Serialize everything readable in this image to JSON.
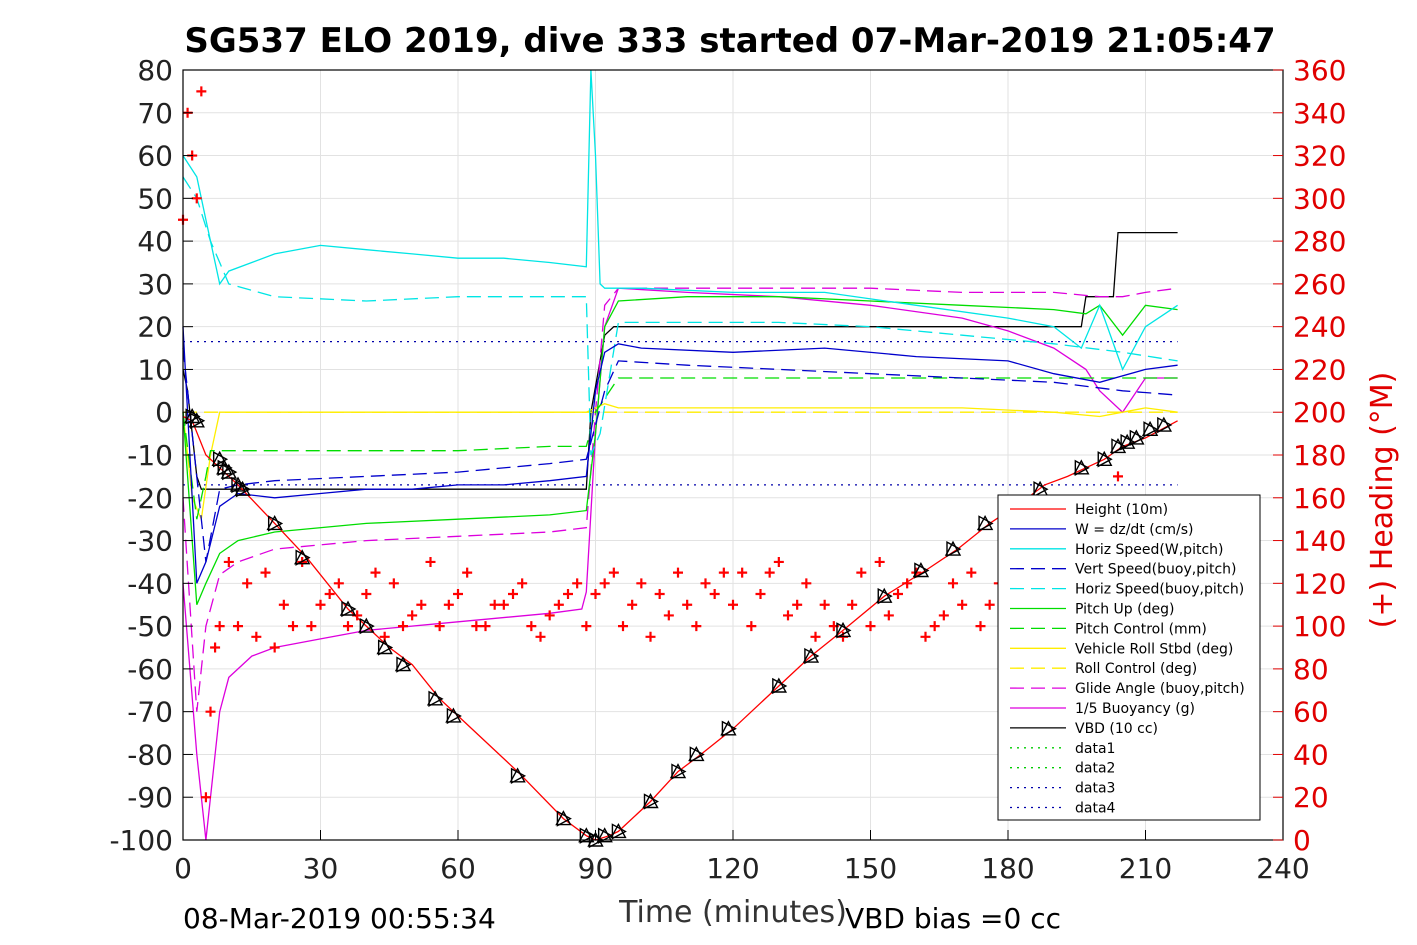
{
  "chart_data": {
    "type": "line",
    "title": "SG537 ELO 2019, dive 333 started 07-Mar-2019 21:05:47",
    "xlabel": "Time (minutes)",
    "ylabel_right": "(+) Heading (°M)",
    "xlim": [
      0,
      240
    ],
    "ylim": [
      -100,
      80
    ],
    "ylim_right": [
      0,
      360
    ],
    "x_ticks": [
      "0",
      "30",
      "60",
      "90",
      "120",
      "150",
      "180",
      "210",
      "240"
    ],
    "y_ticks": [
      "80",
      "70",
      "60",
      "50",
      "40",
      "30",
      "20",
      "10",
      "0",
      "-10",
      "-20",
      "-30",
      "-40",
      "-50",
      "-60",
      "-70",
      "-80",
      "-90",
      "-100"
    ],
    "y_right_ticks": [
      "360",
      "340",
      "320",
      "300",
      "280",
      "260",
      "240",
      "220",
      "200",
      "180",
      "160",
      "140",
      "120",
      "100",
      "80",
      "60",
      "40",
      "20",
      "0"
    ],
    "grid": true,
    "legend_position": "lower-right",
    "footer_left": "08-Mar-2019 00:55:34",
    "footer_right": "VBD bias =0 cc",
    "series": [
      {
        "name": "Height (10m)",
        "color": "#ff0000",
        "style": "solid",
        "x": [
          0,
          2,
          5,
          8,
          12,
          20,
          27,
          36,
          40,
          45,
          50,
          56,
          60,
          73,
          83,
          88,
          90,
          93,
          95,
          102,
          108,
          113,
          120,
          130,
          137,
          144,
          153,
          162,
          169,
          176,
          183,
          188,
          193,
          197,
          201,
          205,
          210,
          217
        ],
        "y": [
          -1,
          -2,
          -10,
          -13,
          -17,
          -26,
          -34,
          -46,
          -50,
          -55,
          -59,
          -67,
          -71,
          -84,
          -95,
          -99,
          -100,
          -99,
          -98,
          -91,
          -84,
          -80,
          -74,
          -64,
          -57,
          -51,
          -43,
          -37,
          -32,
          -26,
          -21,
          -17,
          -15,
          -13,
          -11,
          -8,
          -6,
          -2
        ]
      },
      {
        "name": "W = dz/dt (cm/s)",
        "color": "#0000cc",
        "style": "solid",
        "x": [
          0,
          2,
          3,
          5,
          8,
          12,
          20,
          30,
          40,
          50,
          60,
          70,
          80,
          88,
          90,
          92,
          95,
          100,
          120,
          140,
          160,
          180,
          190,
          200,
          210,
          217
        ],
        "y": [
          20,
          -20,
          -40,
          -35,
          -22,
          -19,
          -20,
          -19,
          -18,
          -18,
          -17,
          -17,
          -16,
          -15,
          5,
          14,
          16,
          15,
          14,
          15,
          13,
          12,
          9,
          7,
          10,
          11
        ]
      },
      {
        "name": "Horiz Speed(W,pitch)",
        "color": "#00e5e5",
        "style": "solid",
        "x": [
          0,
          3,
          5,
          7,
          8,
          10,
          15,
          20,
          30,
          40,
          50,
          60,
          70,
          80,
          88,
          89,
          90,
          91,
          92,
          95,
          100,
          120,
          140,
          160,
          180,
          190,
          196,
          200,
          205,
          210,
          217
        ],
        "y": [
          60,
          55,
          45,
          35,
          30,
          33,
          35,
          37,
          39,
          38,
          37,
          36,
          36,
          35,
          34,
          80,
          60,
          30,
          29,
          29,
          29,
          28,
          28,
          25,
          22,
          20,
          15,
          25,
          10,
          20,
          25
        ]
      },
      {
        "name": "Vert Speed(buoy,pitch)",
        "color": "#0000cc",
        "style": "dashed",
        "x": [
          0,
          5,
          8,
          12,
          20,
          40,
          60,
          80,
          88,
          92,
          95,
          110,
          130,
          150,
          170,
          190,
          205,
          217
        ],
        "y": [
          15,
          -35,
          -18,
          -17,
          -16,
          -15,
          -14,
          -12,
          -11,
          5,
          12,
          11,
          10,
          9,
          8,
          7,
          5,
          4
        ]
      },
      {
        "name": "Horiz Speed(buoy,pitch)",
        "color": "#00e5e5",
        "style": "dashed",
        "x": [
          0,
          3,
          6,
          8,
          10,
          20,
          40,
          60,
          80,
          88,
          89,
          91,
          95,
          110,
          130,
          150,
          170,
          190,
          205,
          217
        ],
        "y": [
          55,
          50,
          40,
          35,
          30,
          27,
          26,
          27,
          27,
          27,
          -10,
          -5,
          21,
          21,
          21,
          20,
          18,
          16,
          14,
          12
        ]
      },
      {
        "name": "Pitch Up (deg)",
        "color": "#00dd00",
        "style": "solid",
        "x": [
          0,
          3,
          5,
          8,
          12,
          20,
          40,
          60,
          80,
          88,
          90,
          92,
          95,
          110,
          130,
          150,
          170,
          190,
          197,
          200,
          205,
          210,
          217
        ],
        "y": [
          0,
          -45,
          -40,
          -33,
          -30,
          -28,
          -26,
          -25,
          -24,
          -23,
          -5,
          20,
          26,
          27,
          27,
          26,
          25,
          24,
          23,
          25,
          18,
          25,
          24
        ]
      },
      {
        "name": "Pitch Control (mm)",
        "color": "#00dd00",
        "style": "dashed",
        "x": [
          0,
          3,
          5,
          6,
          20,
          40,
          60,
          80,
          88,
          90,
          95,
          110,
          130,
          150,
          170,
          190,
          205,
          217
        ],
        "y": [
          0,
          -25,
          -15,
          -9,
          -9,
          -9,
          -9,
          -8,
          -8,
          0,
          8,
          8,
          8,
          8,
          8,
          8,
          8,
          8
        ]
      },
      {
        "name": "Vehicle Roll Stbd (deg)",
        "color": "#ffee00",
        "style": "solid",
        "x": [
          0,
          2,
          4,
          6,
          8,
          12,
          20,
          40,
          60,
          80,
          88,
          92,
          95,
          120,
          150,
          170,
          190,
          200,
          205,
          210,
          217
        ],
        "y": [
          0,
          -20,
          -25,
          -10,
          0,
          0,
          0,
          0,
          0,
          0,
          0,
          2,
          1,
          1,
          1,
          1,
          0,
          -1,
          0,
          1,
          0
        ]
      },
      {
        "name": "Roll Control (deg)",
        "color": "#ffee00",
        "style": "dashed",
        "x": [
          0,
          8,
          217
        ],
        "y": [
          0,
          0,
          0
        ]
      },
      {
        "name": "Glide Angle (buoy,pitch)",
        "color": "#dd00dd",
        "style": "dashed",
        "x": [
          0,
          3,
          5,
          8,
          12,
          20,
          40,
          60,
          80,
          88,
          90,
          92,
          95,
          110,
          130,
          150,
          170,
          190,
          200,
          205,
          210,
          217
        ],
        "y": [
          -20,
          -70,
          -50,
          -38,
          -35,
          -32,
          -30,
          -29,
          -28,
          -27,
          0,
          25,
          29,
          29,
          29,
          29,
          28,
          28,
          27,
          27,
          28,
          29
        ]
      },
      {
        "name": "1/5 Buoyancy (g)",
        "color": "#dd00dd",
        "style": "solid",
        "x": [
          0,
          3,
          5,
          8,
          10,
          15,
          20,
          30,
          40,
          60,
          80,
          87,
          88,
          90,
          92,
          95,
          110,
          130,
          150,
          170,
          180,
          190,
          197,
          200,
          205,
          210,
          217
        ],
        "y": [
          -40,
          -80,
          -100,
          -70,
          -62,
          -57,
          -55,
          -53,
          -51,
          -49,
          -47,
          -46,
          -42,
          -5,
          20,
          29,
          28,
          27,
          25,
          22,
          19,
          15,
          10,
          5,
          0,
          8,
          8
        ]
      },
      {
        "name": "VBD (10 cc)",
        "color": "#000000",
        "style": "solid",
        "x": [
          0,
          1,
          3,
          4,
          88,
          89,
          92,
          94,
          100,
          120,
          140,
          150,
          160,
          180,
          196,
          197,
          203,
          204,
          217
        ],
        "y": [
          10,
          5,
          -15,
          -18,
          -18,
          0,
          18,
          20,
          20,
          20,
          20,
          20,
          20,
          20,
          20,
          27,
          27,
          42,
          42
        ]
      },
      {
        "name": "data1",
        "color": "#00cc00",
        "style": "dotted",
        "x": [],
        "y": []
      },
      {
        "name": "data2",
        "color": "#00cc00",
        "style": "dotted",
        "x": [],
        "y": []
      },
      {
        "name": "data3",
        "color": "#0000aa",
        "style": "dotted",
        "x": [
          0,
          217
        ],
        "y": [
          16.5,
          16.5
        ]
      },
      {
        "name": "data4",
        "color": "#0000aa",
        "style": "dotted",
        "x": [
          0,
          217
        ],
        "y": [
          -17,
          -17
        ]
      }
    ],
    "heading_series": {
      "color": "#ff0000",
      "marker": "+",
      "axis": "right",
      "x": [
        0,
        1,
        2,
        3,
        4,
        5,
        6,
        7,
        8,
        10,
        12,
        14,
        16,
        18,
        20,
        22,
        24,
        26,
        28,
        30,
        32,
        34,
        36,
        38,
        40,
        42,
        44,
        46,
        48,
        50,
        52,
        54,
        56,
        58,
        60,
        62,
        64,
        66,
        68,
        70,
        72,
        74,
        76,
        78,
        80,
        82,
        84,
        86,
        88,
        90,
        92,
        94,
        96,
        98,
        100,
        102,
        104,
        106,
        108,
        110,
        112,
        114,
        116,
        118,
        120,
        122,
        124,
        126,
        128,
        130,
        132,
        134,
        136,
        138,
        140,
        142,
        144,
        146,
        148,
        150,
        152,
        154,
        156,
        158,
        160,
        162,
        164,
        166,
        168,
        170,
        172,
        174,
        176,
        178,
        180,
        182,
        184,
        186,
        188,
        190,
        192,
        194,
        196,
        198,
        200,
        202,
        204
      ],
      "y": [
        290,
        340,
        320,
        300,
        350,
        20,
        60,
        90,
        100,
        130,
        100,
        120,
        95,
        125,
        90,
        110,
        100,
        130,
        100,
        110,
        115,
        120,
        100,
        105,
        115,
        125,
        95,
        120,
        100,
        105,
        110,
        130,
        100,
        110,
        115,
        125,
        100,
        100,
        110,
        110,
        115,
        120,
        100,
        95,
        105,
        110,
        115,
        120,
        100,
        115,
        120,
        125,
        100,
        110,
        120,
        95,
        115,
        105,
        125,
        110,
        100,
        120,
        115,
        125,
        110,
        125,
        100,
        115,
        125,
        130,
        105,
        110,
        120,
        95,
        110,
        100,
        95,
        110,
        125,
        100,
        130,
        105,
        115,
        120,
        125,
        95,
        100,
        105,
        120,
        110,
        125,
        100,
        110,
        120,
        90,
        95,
        110,
        115,
        120,
        100,
        125,
        110,
        115,
        95,
        100,
        150,
        170
      ]
    },
    "marker_series": {
      "color": "#000000",
      "marker": "triangle",
      "x": [
        2,
        3,
        8,
        9,
        10,
        12,
        13,
        20,
        26,
        36,
        40,
        44,
        48,
        55,
        59,
        73,
        83,
        88,
        90,
        92,
        95,
        102,
        108,
        112,
        119,
        130,
        137,
        144,
        153,
        161,
        168,
        175,
        187,
        196,
        201,
        204,
        206,
        208,
        211,
        214
      ],
      "y": [
        -1,
        -2,
        -11,
        -13,
        -14,
        -17,
        -18,
        -26,
        -34,
        -46,
        -50,
        -55,
        -59,
        -67,
        -71,
        -85,
        -95,
        -99,
        -100,
        -99,
        -98,
        -91,
        -84,
        -80,
        -74,
        -64,
        -57,
        -51,
        -43,
        -37,
        -32,
        -26,
        -18,
        -13,
        -11,
        -8,
        -7,
        -6,
        -4,
        -3
      ]
    }
  }
}
